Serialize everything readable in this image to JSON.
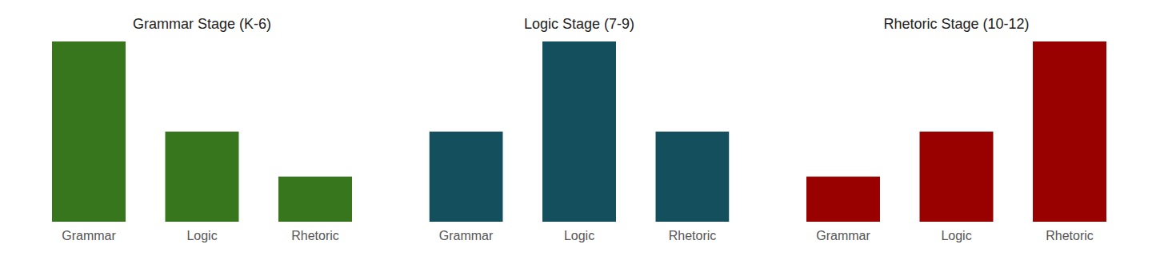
{
  "chart_data": [
    {
      "type": "bar",
      "title": "Grammar Stage (K-6)",
      "categories": [
        "Grammar",
        "Logic",
        "Rhetoric"
      ],
      "values": [
        100,
        50,
        25
      ],
      "color": "#38761d",
      "ylim": [
        0,
        100
      ],
      "tick_labels": "x"
    },
    {
      "type": "bar",
      "title": "Logic Stage (7-9)",
      "categories": [
        "Grammar",
        "Logic",
        "Rhetoric"
      ],
      "values": [
        50,
        100,
        50
      ],
      "color": "#134f5c",
      "ylim": [
        0,
        100
      ],
      "tick_labels": "x"
    },
    {
      "type": "bar",
      "title": "Rhetoric Stage (10-12)",
      "categories": [
        "Grammar",
        "Logic",
        "Rhetoric"
      ],
      "values": [
        25,
        50,
        100
      ],
      "color": "#990000",
      "ylim": [
        0,
        100
      ],
      "tick_labels": "x"
    }
  ]
}
